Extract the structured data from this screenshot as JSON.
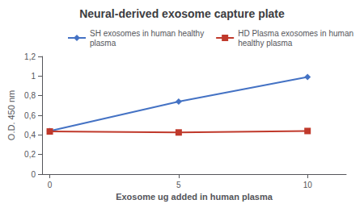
{
  "chart_data": {
    "type": "line",
    "title": "Neural-derived exosome capture plate",
    "xlabel": "Exosome ug added in human plasma",
    "ylabel": "O.D. 450 nm",
    "x": [
      0,
      5,
      10
    ],
    "series": [
      {
        "name": "SH exosomes in human healthy\nplasma",
        "color": "#4472C4",
        "marker": "diamond",
        "values": [
          0.44,
          0.74,
          0.99
        ]
      },
      {
        "name": "HD Plasma exosomes in human\nhealthy plasma",
        "color": "#C0392B",
        "marker": "square",
        "values": [
          0.435,
          0.425,
          0.44
        ]
      }
    ],
    "xlim": [
      -0.3,
      11.5
    ],
    "xticks": [
      0,
      5,
      10
    ],
    "ylim": [
      0,
      1.2
    ],
    "yticks": [
      0,
      {
        "value": 0.2,
        "label": "0,2"
      },
      {
        "value": 0.4,
        "label": "0,4"
      },
      {
        "value": 0.6,
        "label": "0,6"
      },
      {
        "value": 0.8,
        "label": "0,8"
      },
      1,
      {
        "value": 1.2,
        "label": "1,2"
      }
    ],
    "grid": false,
    "legend": "upper right"
  }
}
